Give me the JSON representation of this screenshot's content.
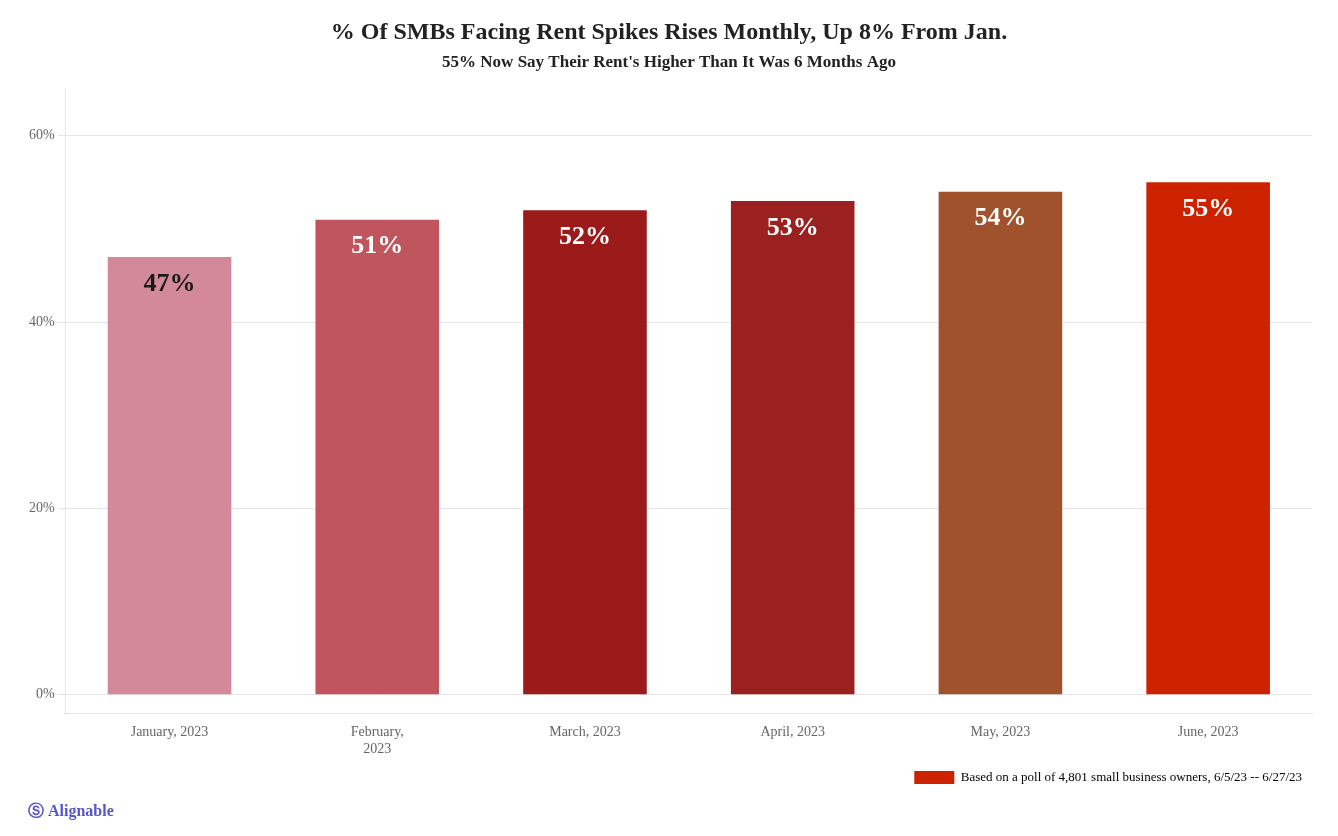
{
  "chart_data": {
    "type": "bar",
    "title": "% Of SMBs Facing Rent Spikes Rises Monthly, Up 8% From Jan.",
    "subtitle": "55% Now Say Their Rent's Higher Than It Was 6 Months Ago",
    "categories": [
      "January, 2023",
      "February,\n2023",
      "March, 2023",
      "April, 2023",
      "May, 2023",
      "June, 2023"
    ],
    "series": [
      {
        "name": "Based on a poll of 4,801 small business owners, 6/5/23 -- 6/27/23",
        "color": "#cc2200",
        "colors": [
          "#d4899a",
          "#c0555e",
          "#9b1a1a",
          "#9b2020",
          "#a0522d",
          "#cc2200"
        ],
        "values": [
          47,
          51,
          52,
          53,
          54,
          55
        ],
        "value_labels": [
          "47%",
          "51%",
          "52%",
          "53%",
          "54%",
          "55%"
        ]
      }
    ],
    "ylim": [
      -2,
      65
    ],
    "yticks": [
      {
        "value": 0,
        "label": "0%"
      },
      {
        "value": 20,
        "label": "20%"
      },
      {
        "value": 40,
        "label": "40%"
      },
      {
        "value": 60,
        "label": "60%"
      }
    ],
    "grid": true,
    "legend": "bottom-right",
    "data_labels": true,
    "annotations": [
      "Ⓢ Alignable"
    ]
  }
}
